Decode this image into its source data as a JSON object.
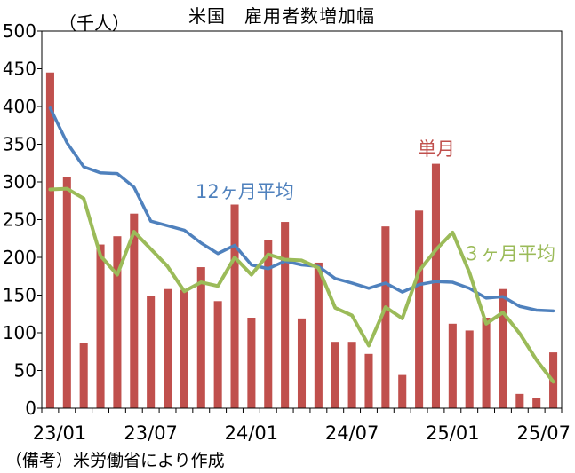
{
  "title": "米国　雇用者数増加幅",
  "unit_label": "（千人）",
  "source_note": "（備考）米労働省により作成",
  "colors": {
    "bars": "#c0504d",
    "avg12": "#4f81bd",
    "avg3": "#9bbb59",
    "axis": "#000000"
  },
  "chart_data": {
    "type": "bar",
    "title": "米国　雇用者数増加幅",
    "ylabel": "（千人）",
    "xlabel": "",
    "ylim": [
      0,
      500
    ],
    "yticks": [
      0,
      50,
      100,
      150,
      200,
      250,
      300,
      350,
      400,
      450,
      500
    ],
    "x_tick_labels": [
      "23/01",
      "23/07",
      "24/01",
      "24/07",
      "25/01",
      "25/07"
    ],
    "x_tick_index": [
      0,
      6,
      12,
      18,
      24,
      30
    ],
    "categories": [
      "23/01",
      "23/02",
      "23/03",
      "23/04",
      "23/05",
      "23/06",
      "23/07",
      "23/08",
      "23/09",
      "23/10",
      "23/11",
      "23/12",
      "24/01",
      "24/02",
      "24/03",
      "24/04",
      "24/05",
      "24/06",
      "24/07",
      "24/08",
      "24/09",
      "24/10",
      "24/11",
      "24/12",
      "25/01",
      "25/02",
      "25/03",
      "25/04",
      "25/05",
      "25/06",
      "25/07"
    ],
    "grid": false,
    "series": [
      {
        "name": "単月",
        "kind": "bar",
        "values": [
          445,
          307,
          86,
          217,
          228,
          258,
          149,
          158,
          157,
          187,
          142,
          270,
          120,
          223,
          247,
          119,
          193,
          88,
          88,
          72,
          241,
          44,
          262,
          324,
          112,
          103,
          120,
          158,
          19,
          14,
          74
        ]
      },
      {
        "name": "12ヶ月平均",
        "kind": "line",
        "values": [
          398,
          352,
          320,
          312,
          311,
          293,
          248,
          242,
          236,
          219,
          205,
          216,
          190,
          185,
          195,
          190,
          188,
          172,
          166,
          159,
          166,
          154,
          164,
          168,
          167,
          159,
          146,
          148,
          135,
          130,
          129
        ]
      },
      {
        "name": "３ヶ月平均",
        "kind": "line",
        "values": [
          290,
          291,
          278,
          202,
          177,
          234,
          211,
          188,
          155,
          167,
          162,
          200,
          177,
          204,
          197,
          196,
          186,
          133,
          123,
          83,
          134,
          119,
          182,
          210,
          233,
          180,
          112,
          127,
          99,
          64,
          35
        ]
      }
    ],
    "labels": {
      "bar": "単月",
      "avg12": "12ヶ月平均",
      "avg3": "３ヶ月平均"
    }
  }
}
